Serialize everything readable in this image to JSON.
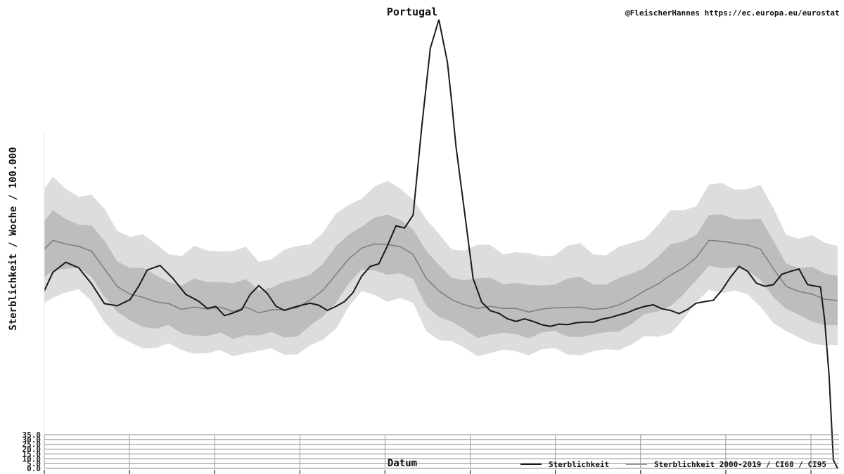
{
  "chart_data": {
    "type": "area",
    "title": "Portugal",
    "credit": "@FleischerHannes https://ec.europa.eu/eurostat",
    "xlabel": "Datum",
    "ylabel": "Sterblichkeit / Woche / 100.000",
    "ylim": [
      0,
      35
    ],
    "y_ticks": [
      "0.0",
      "5.0",
      "10.0",
      "15.0",
      "20.0",
      "25.0",
      "30.0",
      "35.0"
    ],
    "x_ticks_count": 10,
    "grid": true,
    "legend_position": "bottom-right",
    "colors": {
      "line": "#1a1a1a",
      "mean": "#808080",
      "ci68": "#bdbdbd",
      "ci95": "#dddddd"
    },
    "legend": [
      {
        "label": "Sterblichkeit",
        "color": "#1a1a1a"
      },
      {
        "label": "Sterblichkeit 2000-2019 / CI68 / CI95",
        "color": "#999999"
      }
    ],
    "series": [
      {
        "name": "Sterblichkeit",
        "x": [
          0,
          2,
          5,
          8,
          11,
          14,
          17,
          20,
          22,
          24,
          27,
          30,
          33,
          36,
          38,
          40,
          42,
          44,
          46,
          48,
          50,
          52,
          54,
          56,
          58,
          60,
          62,
          64,
          66,
          68,
          70,
          72,
          74,
          76,
          78,
          80,
          82,
          84,
          86,
          88,
          90,
          92,
          94,
          95,
          96,
          98,
          100,
          102,
          104,
          106,
          108,
          110,
          112,
          114,
          116,
          118,
          120,
          122,
          124,
          126,
          128,
          130,
          132,
          134,
          136,
          138,
          140,
          142,
          144,
          146,
          148,
          150,
          152,
          154,
          156,
          158,
          160,
          162,
          164,
          166,
          168,
          170,
          172,
          174,
          176,
          178,
          180,
          181,
          182,
          183,
          184,
          185
        ],
        "values": [
          7.42,
          7.99,
          8.3,
          8.13,
          7.64,
          7.03,
          6.96,
          7.15,
          7.56,
          8.06,
          8.2,
          7.8,
          7.31,
          7.1,
          6.88,
          6.94,
          6.66,
          6.74,
          6.84,
          7.31,
          7.58,
          7.34,
          6.95,
          6.82,
          6.91,
          6.98,
          7.04,
          6.98,
          6.82,
          6.94,
          7.09,
          7.37,
          7.87,
          8.17,
          8.25,
          8.8,
          9.42,
          9.35,
          9.75,
          12.45,
          14.87,
          15.75,
          14.45,
          13.22,
          11.86,
          9.84,
          7.8,
          7.07,
          6.81,
          6.73,
          6.56,
          6.48,
          6.56,
          6.48,
          6.38,
          6.33,
          6.4,
          6.38,
          6.44,
          6.46,
          6.46,
          6.55,
          6.6,
          6.68,
          6.75,
          6.86,
          6.94,
          6.99,
          6.87,
          6.82,
          6.72,
          6.85,
          7.04,
          7.09,
          7.13,
          7.44,
          7.84,
          8.17,
          8.02,
          7.66,
          7.56,
          7.61,
          7.93,
          8.02,
          8.09,
          7.61,
          7.56,
          7.54,
          6.48,
          4.23,
          0.38,
          0.0
        ]
      },
      {
        "name": "Sterblichkeit 2000-2019",
        "x": [
          0,
          2,
          5,
          8,
          11,
          14,
          17,
          20,
          23,
          26,
          29,
          32,
          35,
          38,
          41,
          44,
          47,
          50,
          53,
          56,
          59,
          62,
          65,
          68,
          71,
          74,
          77,
          80,
          83,
          86,
          89,
          92,
          95,
          98,
          101,
          104,
          107,
          110,
          113,
          116,
          119,
          122,
          125,
          128,
          131,
          134,
          137,
          140,
          143,
          146,
          149,
          152,
          155,
          158,
          161,
          164,
          167,
          170,
          173,
          176,
          179,
          182,
          185
        ],
        "mean": [
          8.7,
          8.97,
          8.86,
          8.79,
          8.64,
          8.1,
          7.55,
          7.32,
          7.22,
          7.08,
          7.03,
          6.85,
          6.92,
          6.86,
          6.92,
          6.78,
          6.92,
          6.74,
          6.84,
          6.84,
          6.9,
          7.14,
          7.44,
          7.92,
          8.4,
          8.73,
          8.86,
          8.84,
          8.78,
          8.54,
          7.81,
          7.42,
          7.15,
          6.99,
          6.88,
          6.95,
          6.88,
          6.88,
          6.77,
          6.86,
          6.9,
          6.91,
          6.92,
          6.85,
          6.88,
          6.99,
          7.18,
          7.42,
          7.62,
          7.9,
          8.12,
          8.44,
          8.97,
          8.94,
          8.88,
          8.83,
          8.7,
          8.1,
          7.56,
          7.4,
          7.32,
          7.16,
          7.12
        ]
      }
    ]
  }
}
